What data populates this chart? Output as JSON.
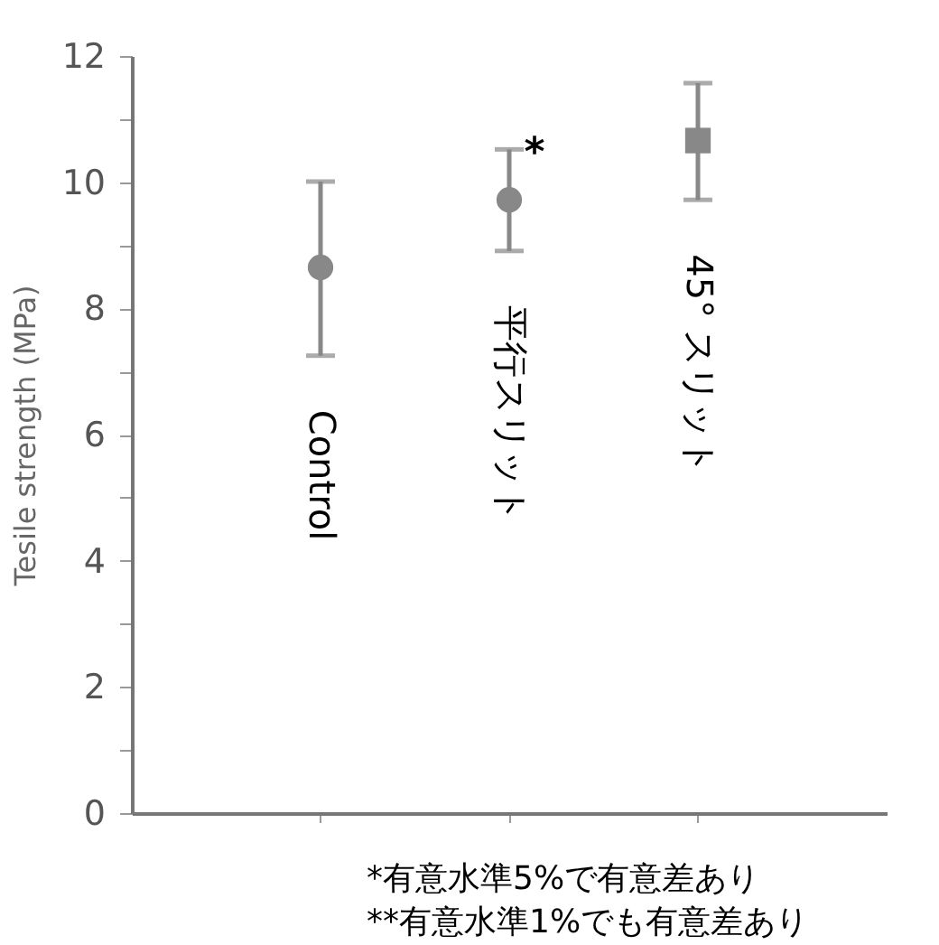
{
  "chart_data": {
    "type": "scatter",
    "ylabel": "Tesile strength (MPa)",
    "categories": [
      "Control",
      "平行スリット",
      "45° スリット"
    ],
    "series": [
      {
        "color": "#888888",
        "marker": "circle",
        "values": [
          8.65,
          null,
          null
        ],
        "errors": [
          [
            7.25,
            10.01
          ],
          null,
          null
        ]
      },
      {
        "color": "#888888",
        "marker": "circle",
        "values": [
          null,
          9.72,
          null
        ],
        "errors": [
          null,
          [
            8.91,
            10.52
          ],
          null
        ]
      },
      {
        "color": "#888888",
        "marker": "square",
        "values": [
          null,
          null,
          10.66
        ],
        "errors": [
          null,
          null,
          [
            9.72,
            11.57
          ]
        ]
      }
    ],
    "ylim": [
      0,
      12
    ],
    "yticks": [
      0,
      {
        "value": 1,
        "label": null
      },
      2,
      {
        "value": 3,
        "label": null
      },
      4,
      {
        "value": 5,
        "label": null
      },
      6,
      {
        "value": 7,
        "label": null
      },
      8,
      {
        "value": 9,
        "label": null
      },
      10,
      {
        "value": 11,
        "label": null
      },
      12
    ],
    "tick_labels": "y",
    "grid": false,
    "annotations": [
      {
        "text": "*",
        "x": "平行スリット",
        "y": 10.52
      },
      "*有意水準5%で有意差あり",
      "**有意水準1%でも有意差あり"
    ]
  }
}
